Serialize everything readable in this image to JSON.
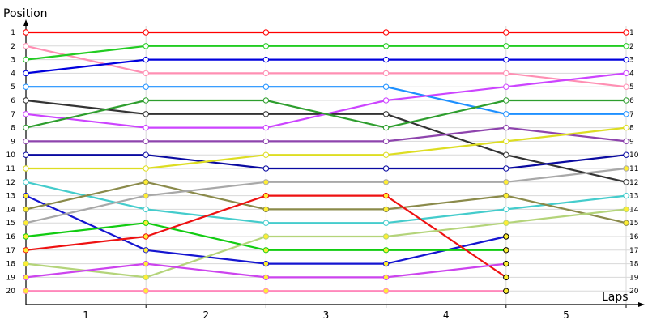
{
  "chart_data": {
    "type": "line",
    "title": "",
    "ylabel": "Position",
    "xlabel": "Laps",
    "x_tick_labels": [
      "1",
      "2",
      "3",
      "4",
      "5"
    ],
    "y_ticks": [
      1,
      2,
      3,
      4,
      5,
      6,
      7,
      8,
      9,
      10,
      11,
      12,
      13,
      14,
      15,
      16,
      17,
      18,
      19,
      20
    ],
    "x": [
      0,
      1,
      2,
      3,
      4,
      5
    ],
    "xlim": [
      0,
      5.3
    ],
    "ylim": [
      20.5,
      1
    ],
    "grid": true,
    "series": [
      {
        "color": "#ff0000",
        "values": [
          1,
          1,
          1,
          1,
          1,
          1
        ]
      },
      {
        "color": "#ff8fb3",
        "values": [
          2,
          4,
          4,
          4,
          4,
          5
        ]
      },
      {
        "color": "#22cc22",
        "values": [
          3,
          2,
          2,
          2,
          2,
          2
        ]
      },
      {
        "color": "#0000dd",
        "values": [
          4,
          3,
          3,
          3,
          3,
          3
        ]
      },
      {
        "color": "#1e90ff",
        "values": [
          5,
          5,
          5,
          5,
          7,
          7
        ]
      },
      {
        "color": "#333333",
        "values": [
          6,
          7,
          7,
          7,
          10,
          12
        ]
      },
      {
        "color": "#cc44ff",
        "values": [
          7,
          8,
          8,
          6,
          5,
          4
        ]
      },
      {
        "color": "#2e9e2e",
        "values": [
          8,
          6,
          6,
          8,
          6,
          6
        ]
      },
      {
        "color": "#8e44ad",
        "values": [
          9,
          9,
          9,
          9,
          8,
          9
        ]
      },
      {
        "color": "#0a0aa0",
        "values": [
          10,
          10,
          11,
          11,
          11,
          10
        ]
      },
      {
        "color": "#dddd22",
        "values": [
          11,
          11,
          10,
          10,
          9,
          8
        ]
      },
      {
        "color": "#44cccc",
        "values": [
          12,
          14,
          15,
          15,
          14,
          13
        ]
      },
      {
        "color": "#1515d0",
        "values": [
          13,
          17,
          18,
          18,
          16,
          null
        ]
      },
      {
        "color": "#8a8a4a",
        "values": [
          14,
          12,
          14,
          14,
          13,
          15
        ]
      },
      {
        "color": "#a8a8a8",
        "values": [
          15,
          13,
          12,
          12,
          12,
          11
        ]
      },
      {
        "color": "#11cc11",
        "values": [
          16,
          15,
          17,
          17,
          17,
          null
        ]
      },
      {
        "color": "#ee1111",
        "values": [
          17,
          16,
          13,
          13,
          19,
          null
        ]
      },
      {
        "color": "#b4d47a",
        "values": [
          18,
          19,
          16,
          16,
          15,
          14
        ]
      },
      {
        "color": "#cc44ee",
        "values": [
          19,
          18,
          19,
          19,
          18,
          null
        ]
      },
      {
        "color": "#ff88bb",
        "values": [
          20,
          20,
          20,
          20,
          20,
          null
        ]
      }
    ]
  }
}
